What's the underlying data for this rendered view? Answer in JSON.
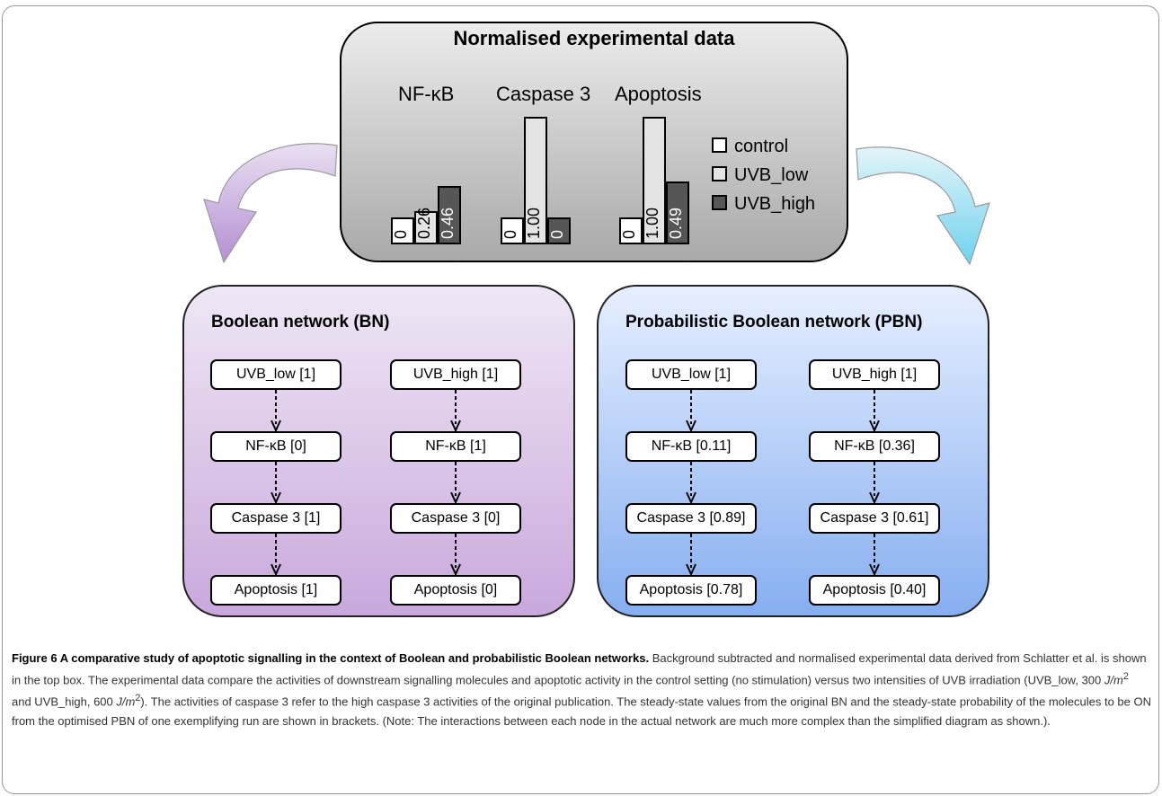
{
  "top": {
    "title": "Normalised experimental data",
    "columns": [
      "NF-κB",
      "Caspase 3",
      "Apoptosis"
    ],
    "legend": [
      "control",
      "UVB_low",
      "UVB_high"
    ],
    "colors": {
      "control": "#ffffff",
      "UVB_low": "#e4e4e4",
      "UVB_high": "#565656"
    }
  },
  "chart_data": {
    "type": "bar",
    "title": "Normalised experimental data",
    "categories": [
      "NF-κB",
      "Caspase 3",
      "Apoptosis"
    ],
    "series": [
      {
        "name": "control",
        "values": [
          0,
          0,
          0
        ]
      },
      {
        "name": "UVB_low",
        "values": [
          0.26,
          1.0,
          1.0
        ]
      },
      {
        "name": "UVB_high",
        "values": [
          0.46,
          0,
          0.49
        ]
      }
    ],
    "value_labels": [
      [
        "0",
        "0.26",
        "0.46"
      ],
      [
        "0",
        "1.00",
        "0"
      ],
      [
        "0",
        "1.00",
        "0.49"
      ]
    ],
    "ylim": [
      0,
      1
    ]
  },
  "bn": {
    "title": "Boolean network (BN)",
    "low": [
      "UVB_low [1]",
      "NF-κB [0]",
      "Caspase 3 [1]",
      "Apoptosis [1]"
    ],
    "high": [
      "UVB_high [1]",
      "NF-κB [1]",
      "Caspase 3 [0]",
      "Apoptosis [0]"
    ]
  },
  "pbn": {
    "title": "Probabilistic Boolean network (PBN)",
    "low": [
      "UVB_low [1]",
      "NF-κB [0.11]",
      "Caspase 3 [0.89]",
      "Apoptosis [0.78]"
    ],
    "high": [
      "UVB_high [1]",
      "NF-κB [0.36]",
      "Caspase 3 [0.61]",
      "Apoptosis [0.40]"
    ]
  },
  "caption": {
    "bold": "Figure 6 A comparative study of apoptotic signalling in the context of Boolean and probabilistic Boolean networks.",
    "text1": " Background subtracted and normalised experimental data derived from Schlatter et al. is shown in the top box. The experimental data compare the activities of downstream signalling molecules and apoptotic activity in the control setting (no stimulation) versus two intensities of UVB irradiation (UVB_low, 300 ",
    "unit1": "J/m",
    "text2": " and UVB_high, 600 ",
    "unit2": "J/m",
    "sup": "2",
    "text3": "). The activities of caspase 3 refer to the high caspase 3 activities of the original publication. The steady-state values from the original BN and the steady-state probability of the molecules to be ON from the optimised PBN of one exemplifying run are shown in brackets. (Note: The interactions between each node in the actual network are much more complex than the simplified diagram as shown.)."
  }
}
